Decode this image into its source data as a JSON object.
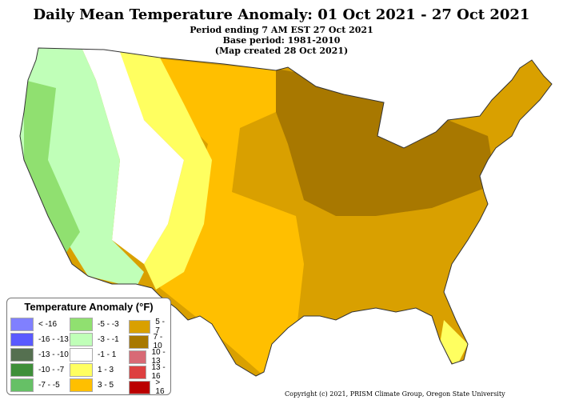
{
  "title": "Daily Mean Temperature Anomaly: 01 Oct 2021 - 27 Oct 2021",
  "subtitles": [
    "Period ending 7 AM EST 27 Oct 2021",
    "Base period: 1981-2010",
    "(Map created 28 Oct 2021)"
  ],
  "legend": {
    "title": "Temperature Anomaly (°F)",
    "items": [
      {
        "label": "< -16",
        "color": "#8080ff"
      },
      {
        "label": "-16 - -13",
        "color": "#5a5aff"
      },
      {
        "label": "-13 - -10",
        "color": "#557050"
      },
      {
        "label": "-10 - -7",
        "color": "#3f8f3a"
      },
      {
        "label": "-7 - -5",
        "color": "#66c066"
      },
      {
        "label": "-5 - -3",
        "color": "#90e070"
      },
      {
        "label": "-3 - -1",
        "color": "#c0ffb8"
      },
      {
        "label": "-1 - 1",
        "color": "#ffffff"
      },
      {
        "label": "1 - 3",
        "color": "#ffff60"
      },
      {
        "label": "3 - 5",
        "color": "#ffbf00"
      },
      {
        "label": "5 - 7",
        "color": "#d9a000"
      },
      {
        "label": "7 - 10",
        "color": "#a87800"
      },
      {
        "label": "10 - 13",
        "color": "#d86a75"
      },
      {
        "label": "13 - 16",
        "color": "#dd4040"
      },
      {
        "label": "> 16",
        "color": "#bb0000"
      }
    ]
  },
  "copyright": "Copyright (c) 2021, PRISM Climate Group, Oregon State University"
}
